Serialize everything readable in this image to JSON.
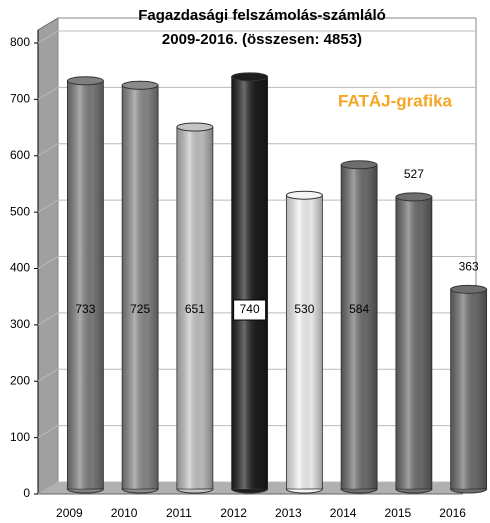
{
  "chart_data": {
    "type": "bar",
    "title": "Fagazdasági felszámolás-számláló",
    "subtitle": "2009-2016. (összesen: 4853)",
    "annotation": "FATÁJ-grafika",
    "categories": [
      "2009",
      "2010",
      "2011",
      "2012",
      "2013",
      "2014",
      "2015",
      "2016"
    ],
    "values": [
      733,
      725,
      651,
      740,
      530,
      584,
      527,
      363
    ],
    "colors": [
      "#7f7f7f",
      "#8a8a8a",
      "#c4c4c4",
      "#1e1e1e",
      "#f4f4f4",
      "#6e6e6e",
      "#6e6e6e",
      "#6e6e6e"
    ],
    "ylim": [
      0,
      800
    ],
    "yticks": [
      0,
      100,
      200,
      300,
      400,
      500,
      600,
      700,
      800
    ],
    "grid": true
  }
}
